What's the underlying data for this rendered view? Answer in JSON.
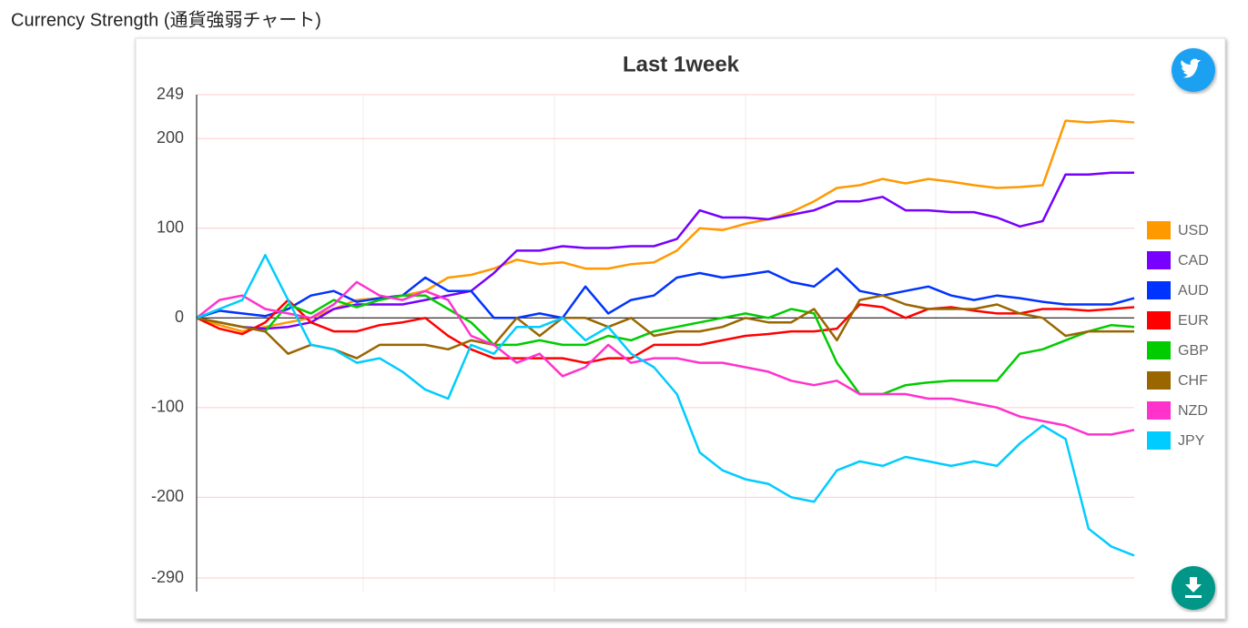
{
  "header": "Currency Strength (通貨強弱チャート)",
  "chart_data": {
    "type": "line",
    "title": "Last 1week",
    "ylim": [
      -290,
      249
    ],
    "yticks": [
      -290,
      -200,
      -100,
      0,
      100,
      200,
      249
    ],
    "grid": true,
    "legend": "right",
    "series": [
      {
        "name": "USD",
        "color": "#ff9900",
        "values": [
          0,
          -8,
          -15,
          -10,
          -5,
          0,
          10,
          20,
          22,
          25,
          30,
          45,
          48,
          55,
          65,
          60,
          62,
          55,
          55,
          60,
          62,
          75,
          100,
          98,
          105,
          110,
          118,
          130,
          145,
          148,
          155,
          150,
          155,
          152,
          148,
          145,
          146,
          148,
          220,
          218,
          220,
          218
        ]
      },
      {
        "name": "CAD",
        "color": "#7700ff",
        "values": [
          0,
          -5,
          -10,
          -12,
          -10,
          -5,
          10,
          15,
          15,
          15,
          20,
          25,
          30,
          50,
          75,
          75,
          80,
          78,
          78,
          80,
          80,
          88,
          120,
          112,
          112,
          110,
          115,
          120,
          130,
          130,
          135,
          120,
          120,
          118,
          118,
          112,
          102,
          108,
          160,
          160,
          162,
          162
        ]
      },
      {
        "name": "AUD",
        "color": "#0033ff",
        "values": [
          0,
          8,
          5,
          2,
          10,
          25,
          30,
          18,
          22,
          25,
          45,
          30,
          30,
          0,
          0,
          5,
          0,
          35,
          5,
          20,
          25,
          45,
          50,
          45,
          48,
          52,
          40,
          35,
          55,
          30,
          25,
          30,
          35,
          25,
          20,
          25,
          22,
          18,
          15,
          15,
          15,
          22
        ]
      },
      {
        "name": "EUR",
        "color": "#ff0000",
        "values": [
          0,
          -12,
          -18,
          -5,
          20,
          -5,
          -15,
          -15,
          -8,
          -5,
          0,
          -20,
          -35,
          -45,
          -45,
          -45,
          -45,
          -50,
          -45,
          -45,
          -30,
          -30,
          -30,
          -25,
          -20,
          -18,
          -15,
          -15,
          -12,
          15,
          12,
          0,
          10,
          12,
          8,
          5,
          5,
          10,
          10,
          8,
          10,
          12
        ]
      },
      {
        "name": "GBP",
        "color": "#00cc00",
        "values": [
          0,
          -5,
          -10,
          -15,
          15,
          5,
          20,
          12,
          20,
          25,
          25,
          10,
          -5,
          -30,
          -30,
          -25,
          -30,
          -30,
          -20,
          -25,
          -15,
          -10,
          -5,
          0,
          5,
          0,
          10,
          5,
          -50,
          -85,
          -85,
          -75,
          -72,
          -70,
          -70,
          -70,
          -40,
          -35,
          -25,
          -15,
          -8,
          -10
        ]
      },
      {
        "name": "CHF",
        "color": "#996600",
        "values": [
          0,
          -5,
          -10,
          -15,
          -40,
          -30,
          -35,
          -45,
          -30,
          -30,
          -30,
          -35,
          -25,
          -30,
          0,
          -20,
          0,
          0,
          -10,
          0,
          -20,
          -15,
          -15,
          -10,
          0,
          -5,
          -5,
          10,
          -25,
          20,
          25,
          15,
          10,
          10,
          10,
          15,
          5,
          0,
          -20,
          -15,
          -15,
          -15
        ]
      },
      {
        "name": "NZD",
        "color": "#ff33cc",
        "values": [
          0,
          20,
          25,
          10,
          5,
          0,
          15,
          40,
          25,
          20,
          30,
          20,
          -20,
          -30,
          -50,
          -40,
          -65,
          -55,
          -30,
          -50,
          -45,
          -45,
          -50,
          -50,
          -55,
          -60,
          -70,
          -75,
          -70,
          -85,
          -85,
          -85,
          -90,
          -90,
          -95,
          -100,
          -110,
          -115,
          -120,
          -130,
          -130,
          -125
        ]
      },
      {
        "name": "JPY",
        "color": "#00ccff",
        "values": [
          0,
          10,
          20,
          70,
          20,
          -30,
          -35,
          -50,
          -45,
          -60,
          -80,
          -90,
          -30,
          -40,
          -10,
          -10,
          0,
          -25,
          -10,
          -40,
          -55,
          -85,
          -150,
          -170,
          -180,
          -185,
          -200,
          -205,
          -170,
          -160,
          -165,
          -155,
          -160,
          -165,
          -160,
          -165,
          -140,
          -120,
          -135,
          -235,
          -255,
          -265
        ]
      }
    ]
  }
}
